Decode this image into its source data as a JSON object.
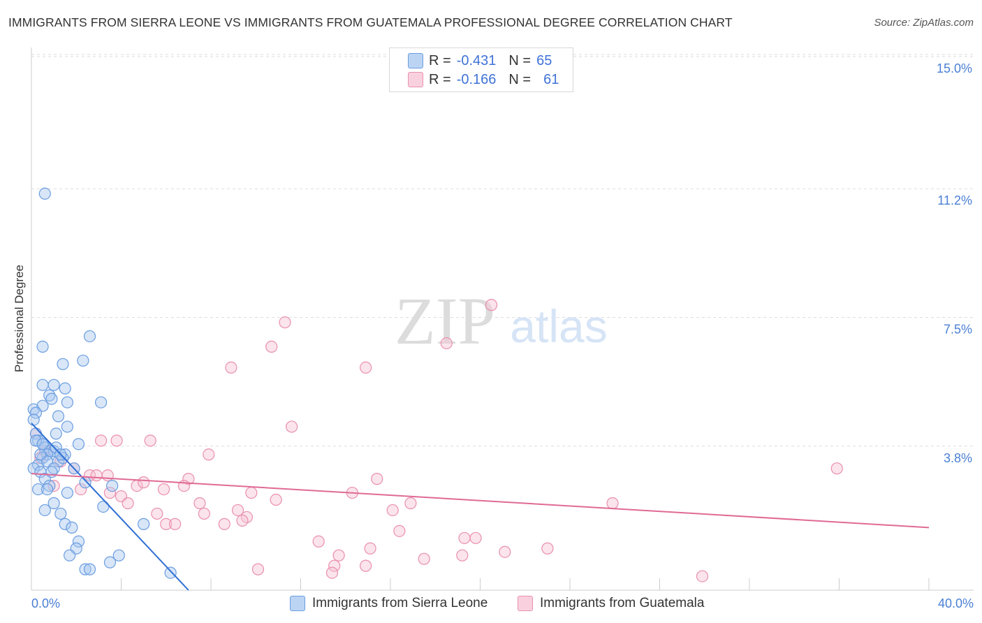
{
  "title": "IMMIGRANTS FROM SIERRA LEONE VS IMMIGRANTS FROM GUATEMALA PROFESSIONAL DEGREE CORRELATION CHART",
  "source": "Source: ZipAtlas.com",
  "watermark": {
    "zip": "ZIP",
    "atlas": "atlas"
  },
  "legend": {
    "r_label": "R =",
    "n_label": "N =",
    "series": [
      {
        "r": "-0.431",
        "n": "65"
      },
      {
        "r": "-0.166",
        "n": "61"
      }
    ]
  },
  "colors": {
    "blue_fill": "#a9c8f0",
    "blue_stroke": "#6a9de0",
    "blue_line": "#2f6fd4",
    "pink_fill": "#f6c3d3",
    "pink_stroke": "#e98fae",
    "pink_line": "#e06a95",
    "tick_text": "#4a7fd4",
    "grid": "#dddddd"
  },
  "chart_data": {
    "type": "scatter",
    "title": "IMMIGRANTS FROM SIERRA LEONE VS IMMIGRANTS FROM GUATEMALA PROFESSIONAL DEGREE CORRELATION CHART",
    "xlabel": "",
    "ylabel": "Professional Degree",
    "xlim": [
      0,
      40
    ],
    "ylim": [
      0,
      15.5
    ],
    "x_tick_labels": [
      "0.0%",
      "40.0%"
    ],
    "y_ticks": [
      3.8,
      7.5,
      11.2,
      15.0
    ],
    "y_tick_labels": [
      "3.8%",
      "7.5%",
      "11.2%",
      "15.0%"
    ],
    "legend_position": "top-center",
    "series": [
      {
        "name": "Immigrants from Sierra Leone",
        "color": "blue",
        "r": -0.431,
        "n": 65,
        "trend": {
          "x": [
            0.0,
            7.0
          ],
          "y": [
            4.8,
            0.0
          ]
        },
        "points": [
          [
            0.6,
            11.4
          ],
          [
            2.6,
            7.3
          ],
          [
            0.5,
            7.0
          ],
          [
            1.4,
            6.5
          ],
          [
            2.3,
            6.6
          ],
          [
            0.5,
            5.9
          ],
          [
            1.0,
            5.9
          ],
          [
            1.5,
            5.8
          ],
          [
            0.8,
            5.6
          ],
          [
            0.9,
            5.5
          ],
          [
            1.6,
            5.4
          ],
          [
            3.1,
            5.4
          ],
          [
            0.1,
            5.2
          ],
          [
            0.5,
            5.3
          ],
          [
            0.2,
            5.1
          ],
          [
            0.1,
            4.9
          ],
          [
            1.2,
            5.0
          ],
          [
            1.6,
            4.7
          ],
          [
            0.2,
            4.5
          ],
          [
            1.1,
            4.5
          ],
          [
            0.3,
            4.3
          ],
          [
            0.5,
            4.2
          ],
          [
            0.6,
            4.1
          ],
          [
            0.8,
            4.0
          ],
          [
            1.0,
            4.0
          ],
          [
            0.7,
            3.9
          ],
          [
            0.5,
            3.8
          ],
          [
            1.5,
            3.9
          ],
          [
            2.1,
            4.2
          ],
          [
            1.2,
            3.7
          ],
          [
            0.3,
            3.6
          ],
          [
            0.7,
            3.7
          ],
          [
            1.4,
            3.8
          ],
          [
            1.9,
            3.5
          ],
          [
            0.1,
            3.5
          ],
          [
            0.4,
            3.4
          ],
          [
            1.0,
            3.5
          ],
          [
            2.4,
            3.1
          ],
          [
            0.6,
            3.2
          ],
          [
            0.8,
            3.0
          ],
          [
            0.3,
            2.9
          ],
          [
            0.7,
            2.9
          ],
          [
            1.6,
            2.8
          ],
          [
            3.6,
            3.0
          ],
          [
            1.0,
            2.5
          ],
          [
            0.6,
            2.3
          ],
          [
            1.3,
            2.2
          ],
          [
            3.2,
            2.4
          ],
          [
            1.5,
            1.9
          ],
          [
            1.8,
            1.8
          ],
          [
            5.0,
            1.9
          ],
          [
            2.1,
            1.4
          ],
          [
            2.0,
            1.2
          ],
          [
            1.7,
            1.0
          ],
          [
            3.9,
            1.0
          ],
          [
            3.5,
            0.8
          ],
          [
            2.4,
            0.6
          ],
          [
            2.6,
            0.6
          ],
          [
            6.2,
            0.5
          ],
          [
            0.4,
            3.9
          ],
          [
            1.1,
            4.1
          ],
          [
            0.9,
            3.4
          ],
          [
            0.2,
            4.3
          ],
          [
            1.3,
            3.9
          ],
          [
            0.5,
            4.2
          ]
        ]
      },
      {
        "name": "Immigrants from Guatemala",
        "color": "pink",
        "r": -0.166,
        "n": 61,
        "trend": {
          "x": [
            0.0,
            40.0
          ],
          "y": [
            3.35,
            1.8
          ]
        },
        "points": [
          [
            20.5,
            8.2
          ],
          [
            11.3,
            7.7
          ],
          [
            10.7,
            7.0
          ],
          [
            18.5,
            7.1
          ],
          [
            8.9,
            6.4
          ],
          [
            14.9,
            6.4
          ],
          [
            11.6,
            4.7
          ],
          [
            0.2,
            4.5
          ],
          [
            5.3,
            4.3
          ],
          [
            3.1,
            4.3
          ],
          [
            3.8,
            4.3
          ],
          [
            7.9,
            3.9
          ],
          [
            0.4,
            3.8
          ],
          [
            1.3,
            3.7
          ],
          [
            1.9,
            3.5
          ],
          [
            35.9,
            3.5
          ],
          [
            2.6,
            3.3
          ],
          [
            2.9,
            3.3
          ],
          [
            3.4,
            3.3
          ],
          [
            7.0,
            3.2
          ],
          [
            15.4,
            3.2
          ],
          [
            1.0,
            3.0
          ],
          [
            4.7,
            3.0
          ],
          [
            5.0,
            3.1
          ],
          [
            6.8,
            3.0
          ],
          [
            2.2,
            2.9
          ],
          [
            3.5,
            2.8
          ],
          [
            5.9,
            2.9
          ],
          [
            9.8,
            2.8
          ],
          [
            14.3,
            2.8
          ],
          [
            4.0,
            2.7
          ],
          [
            10.9,
            2.6
          ],
          [
            4.3,
            2.5
          ],
          [
            7.5,
            2.5
          ],
          [
            16.9,
            2.5
          ],
          [
            25.9,
            2.5
          ],
          [
            16.1,
            2.3
          ],
          [
            9.2,
            2.3
          ],
          [
            7.7,
            2.2
          ],
          [
            5.6,
            2.2
          ],
          [
            9.6,
            2.1
          ],
          [
            9.4,
            2.0
          ],
          [
            6.0,
            1.9
          ],
          [
            6.4,
            1.9
          ],
          [
            8.6,
            1.9
          ],
          [
            16.4,
            1.7
          ],
          [
            19.3,
            1.5
          ],
          [
            19.8,
            1.5
          ],
          [
            12.8,
            1.4
          ],
          [
            15.1,
            1.2
          ],
          [
            23.0,
            1.2
          ],
          [
            13.7,
            1.0
          ],
          [
            19.2,
            1.0
          ],
          [
            21.1,
            1.1
          ],
          [
            17.5,
            0.9
          ],
          [
            13.5,
            0.7
          ],
          [
            14.9,
            0.7
          ],
          [
            13.4,
            0.5
          ],
          [
            10.1,
            0.6
          ],
          [
            29.9,
            0.4
          ],
          [
            0.6,
            4.0
          ]
        ]
      }
    ]
  }
}
